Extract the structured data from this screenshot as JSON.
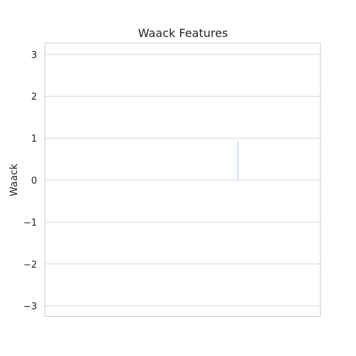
{
  "chart_data": {
    "type": "bar",
    "title": "Waack Features",
    "xlabel": "",
    "ylabel": "Waack",
    "ylim": [
      -3.3,
      3.3
    ],
    "yticks": [
      3,
      2,
      1,
      0,
      -1,
      -2,
      -3
    ],
    "ytick_labels": [
      "3",
      "2",
      "1",
      "0",
      "−1",
      "−2",
      "−3"
    ],
    "grid": true,
    "reference_lines": [
      1,
      -1
    ],
    "series": [
      {
        "values": [
          0.92
        ],
        "color": "#a9bff5"
      }
    ]
  }
}
